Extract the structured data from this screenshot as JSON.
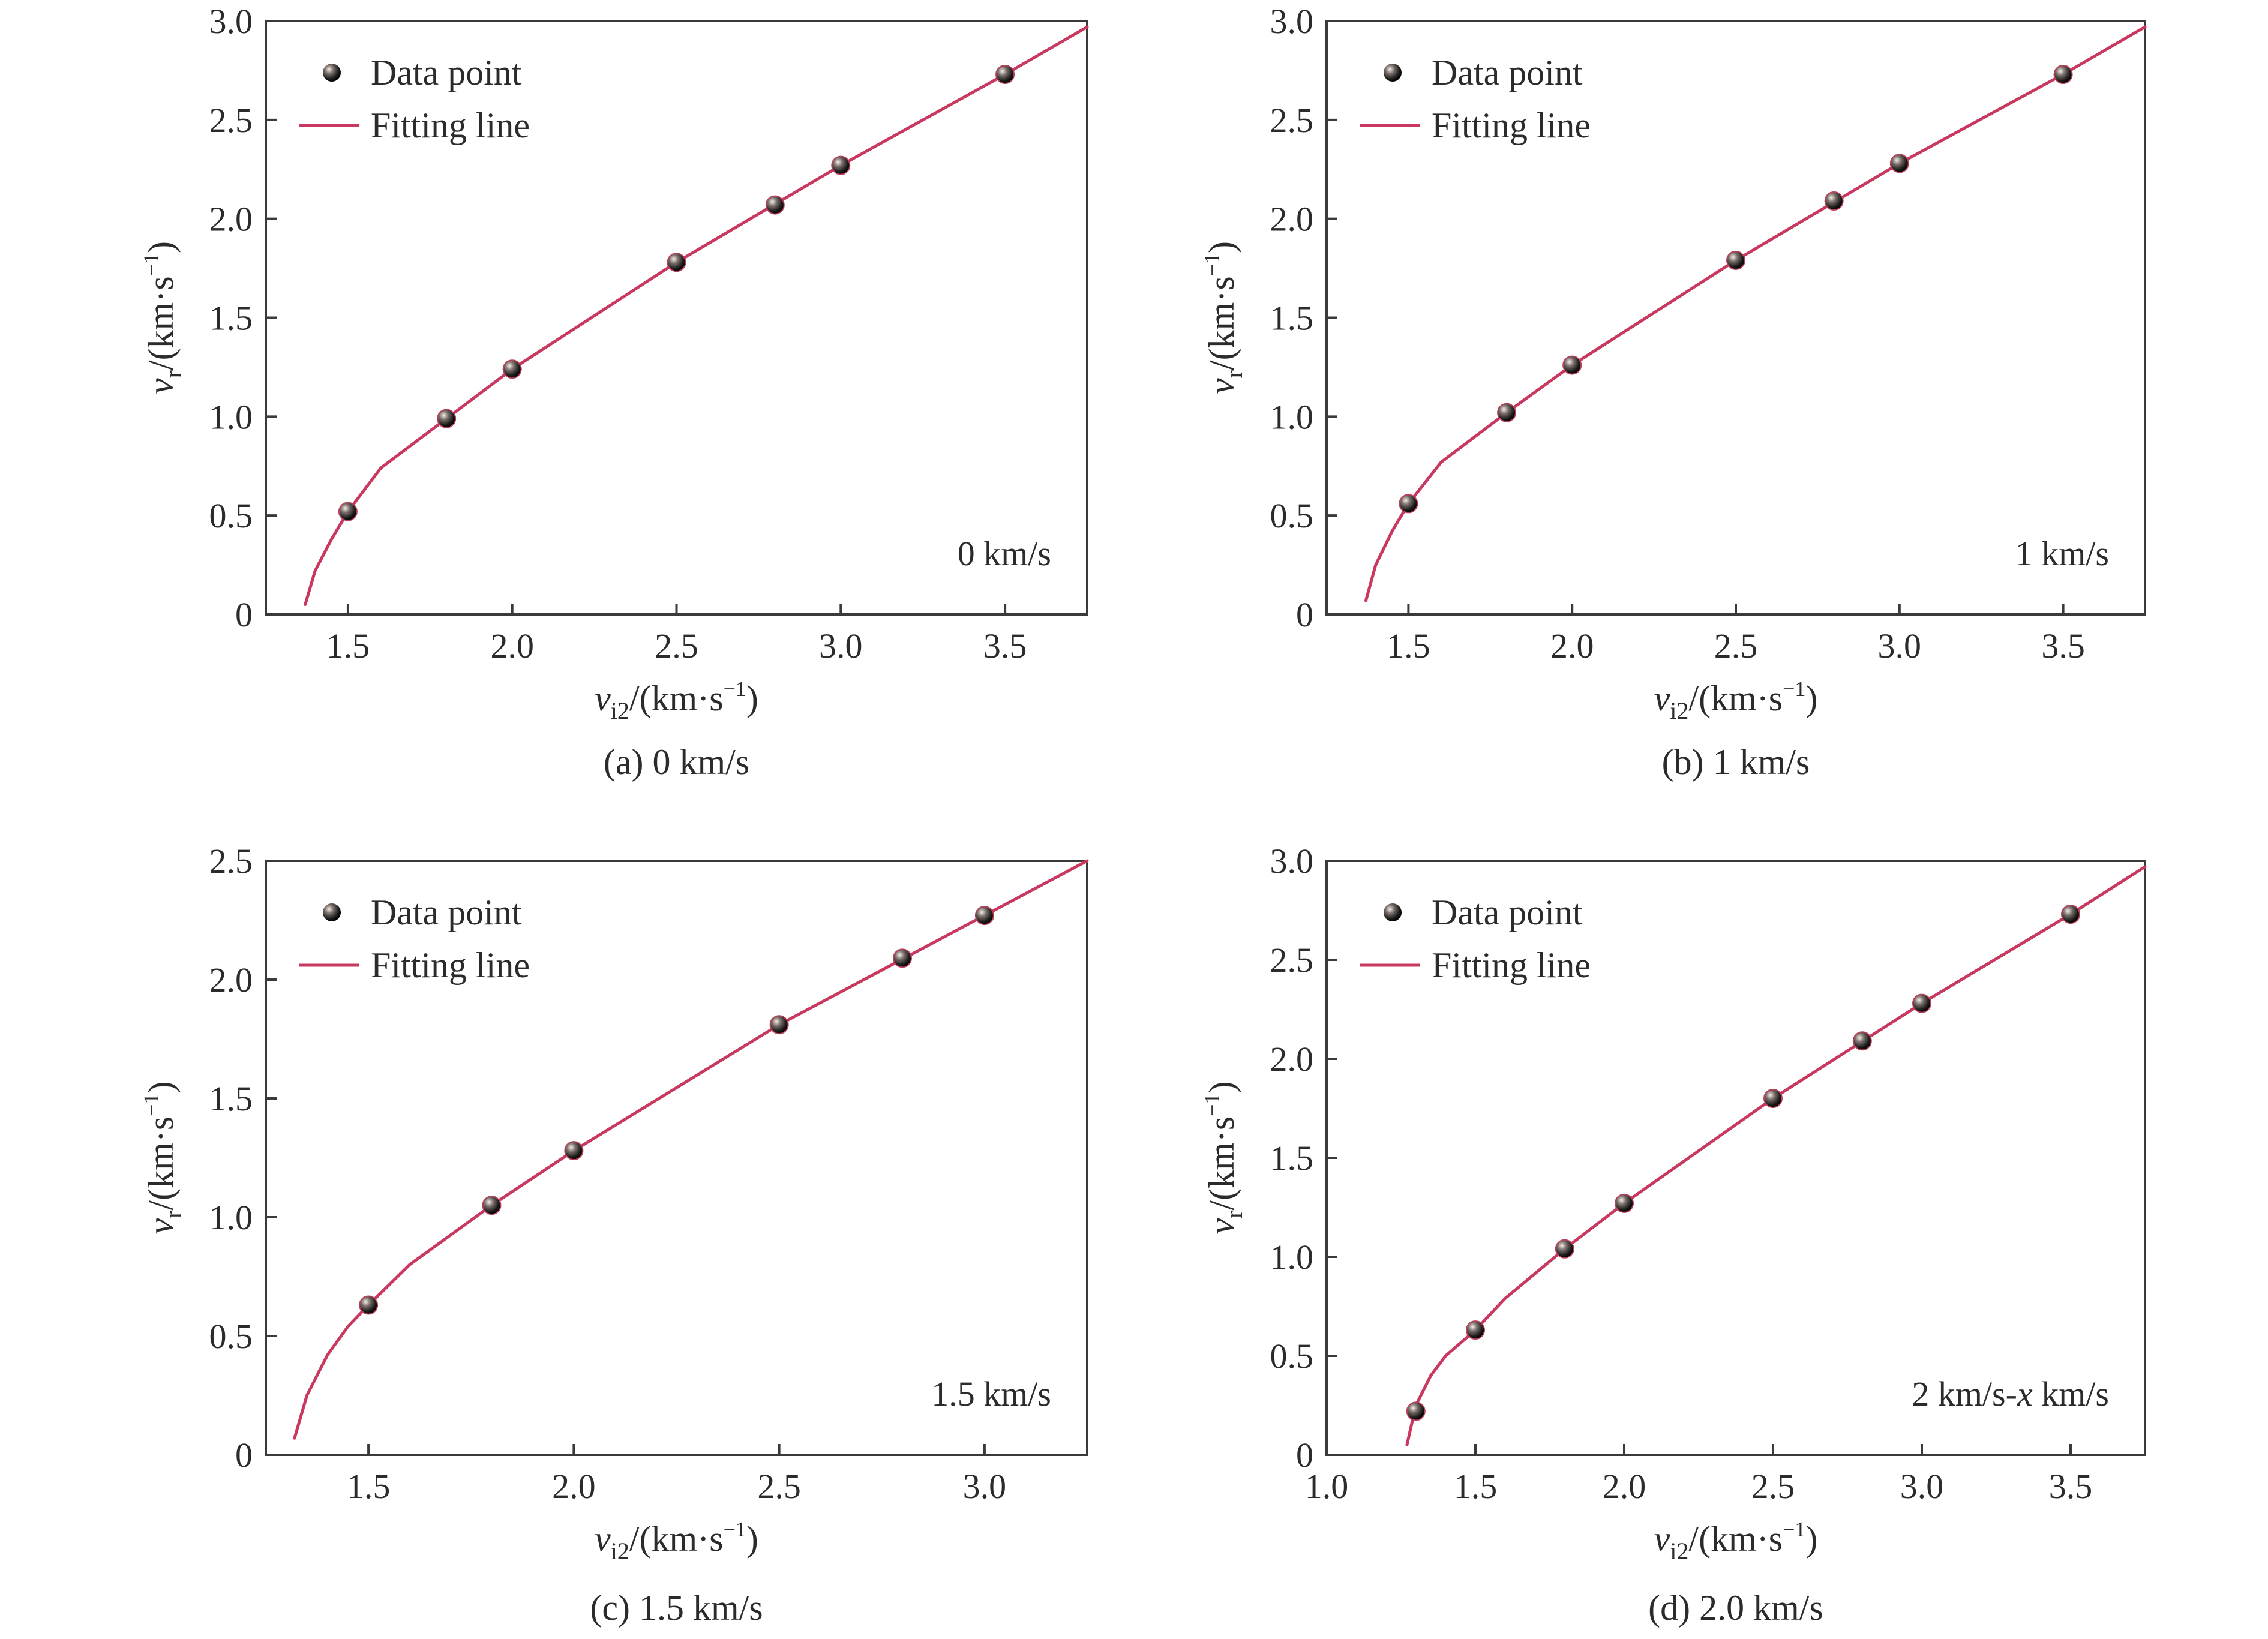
{
  "chart_data": [
    {
      "type": "scatter",
      "caption": "(a) 0 km/s",
      "annotation": "0 km/s",
      "xlabel": "v_i2/(km·s^−1)",
      "ylabel": "v_r/(km·s^−1)",
      "xlim": [
        1.25,
        3.75
      ],
      "ylim": [
        0,
        3.0
      ],
      "x_ticks": [
        "1.5",
        "2.0",
        "2.5",
        "3.0",
        "3.5"
      ],
      "y_ticks": [
        "0",
        "0.5",
        "1.0",
        "1.5",
        "2.0",
        "2.5",
        "3.0"
      ],
      "legend": {
        "position": "top-left",
        "entries": [
          "Data point",
          "Fitting line"
        ]
      },
      "grid": false,
      "series": [
        {
          "name": "Data point",
          "kind": "points",
          "x": [
            1.5,
            1.8,
            2.0,
            2.5,
            2.8,
            3.0,
            3.5
          ],
          "y": [
            0.52,
            0.99,
            1.24,
            1.78,
            2.07,
            2.27,
            2.73
          ]
        },
        {
          "name": "Fitting line",
          "kind": "line",
          "x": [
            1.37,
            1.4,
            1.45,
            1.5,
            1.6,
            1.8,
            2.0,
            2.5,
            3.0,
            3.5,
            3.75
          ],
          "y": [
            0.05,
            0.22,
            0.38,
            0.52,
            0.74,
            0.99,
            1.24,
            1.78,
            2.27,
            2.73,
            2.97
          ]
        }
      ],
      "colors": {
        "points": "#1e1e1e",
        "line": "#c8385f"
      }
    },
    {
      "type": "scatter",
      "caption": "(b) 1 km/s",
      "annotation": "1 km/s",
      "xlabel": "v_i2/(km·s^−1)",
      "ylabel": "v_r/(km·s^−1)",
      "xlim": [
        1.25,
        3.75
      ],
      "ylim": [
        0,
        3.0
      ],
      "x_ticks": [
        "1.5",
        "2.0",
        "2.5",
        "3.0",
        "3.5"
      ],
      "y_ticks": [
        "0",
        "0.5",
        "1.0",
        "1.5",
        "2.0",
        "2.5",
        "3.0"
      ],
      "legend": {
        "position": "top-left",
        "entries": [
          "Data point",
          "Fitting line"
        ]
      },
      "grid": false,
      "series": [
        {
          "name": "Data point",
          "kind": "points",
          "x": [
            1.5,
            1.8,
            2.0,
            2.5,
            2.8,
            3.0,
            3.5
          ],
          "y": [
            0.56,
            1.02,
            1.26,
            1.79,
            2.09,
            2.28,
            2.73
          ]
        },
        {
          "name": "Fitting line",
          "kind": "line",
          "x": [
            1.37,
            1.4,
            1.45,
            1.5,
            1.6,
            1.8,
            2.0,
            2.5,
            3.0,
            3.5,
            3.75
          ],
          "y": [
            0.07,
            0.25,
            0.42,
            0.56,
            0.77,
            1.02,
            1.26,
            1.79,
            2.28,
            2.73,
            2.97
          ]
        }
      ],
      "colors": {
        "points": "#1e1e1e",
        "line": "#c8385f"
      }
    },
    {
      "type": "scatter",
      "caption": "(c) 1.5 km/s",
      "annotation": "1.5 km/s",
      "xlabel": "v_i2/(km·s^−1)",
      "ylabel": "v_r/(km·s^−1)",
      "xlim": [
        1.25,
        3.25
      ],
      "ylim": [
        0,
        2.5
      ],
      "x_ticks": [
        "1.5",
        "2.0",
        "2.5",
        "3.0"
      ],
      "y_ticks": [
        "0",
        "0.5",
        "1.0",
        "1.5",
        "2.0",
        "2.5"
      ],
      "legend": {
        "position": "top-left",
        "entries": [
          "Data point",
          "Fitting line"
        ]
      },
      "grid": false,
      "series": [
        {
          "name": "Data point",
          "kind": "points",
          "x": [
            1.5,
            1.8,
            2.0,
            2.5,
            2.8,
            3.0
          ],
          "y": [
            0.63,
            1.05,
            1.28,
            1.81,
            2.09,
            2.27
          ]
        },
        {
          "name": "Fitting line",
          "kind": "line",
          "x": [
            1.32,
            1.35,
            1.4,
            1.45,
            1.5,
            1.6,
            1.8,
            2.0,
            2.5,
            3.0,
            3.25
          ],
          "y": [
            0.07,
            0.25,
            0.42,
            0.54,
            0.63,
            0.8,
            1.05,
            1.28,
            1.81,
            2.27,
            2.5
          ]
        }
      ],
      "colors": {
        "points": "#1e1e1e",
        "line": "#c8385f"
      }
    },
    {
      "type": "scatter",
      "caption": "(d) 2.0 km/s",
      "annotation": "2 km/s-x km/s",
      "xlabel": "v_i2/(km·s^−1)",
      "ylabel": "v_r/(km·s^−1)",
      "xlim": [
        1.0,
        3.75
      ],
      "ylim": [
        0,
        3.0
      ],
      "x_ticks": [
        "1.0",
        "1.5",
        "2.0",
        "2.5",
        "3.0",
        "3.5"
      ],
      "y_ticks": [
        "0",
        "0.5",
        "1.0",
        "1.5",
        "2.0",
        "2.5",
        "3.0"
      ],
      "legend": {
        "position": "top-left",
        "entries": [
          "Data point",
          "Fitting line"
        ]
      },
      "grid": false,
      "series": [
        {
          "name": "Data point",
          "kind": "points",
          "x": [
            1.3,
            1.5,
            1.8,
            2.0,
            2.5,
            2.8,
            3.0,
            3.5
          ],
          "y": [
            0.22,
            0.63,
            1.04,
            1.27,
            1.8,
            2.09,
            2.28,
            2.73
          ]
        },
        {
          "name": "Fitting line",
          "kind": "line",
          "x": [
            1.27,
            1.3,
            1.35,
            1.4,
            1.5,
            1.6,
            1.8,
            2.0,
            2.5,
            3.0,
            3.5,
            3.75
          ],
          "y": [
            0.05,
            0.25,
            0.4,
            0.5,
            0.63,
            0.79,
            1.04,
            1.27,
            1.8,
            2.28,
            2.73,
            2.97
          ]
        }
      ],
      "colors": {
        "points": "#1e1e1e",
        "line": "#c8385f"
      }
    }
  ]
}
